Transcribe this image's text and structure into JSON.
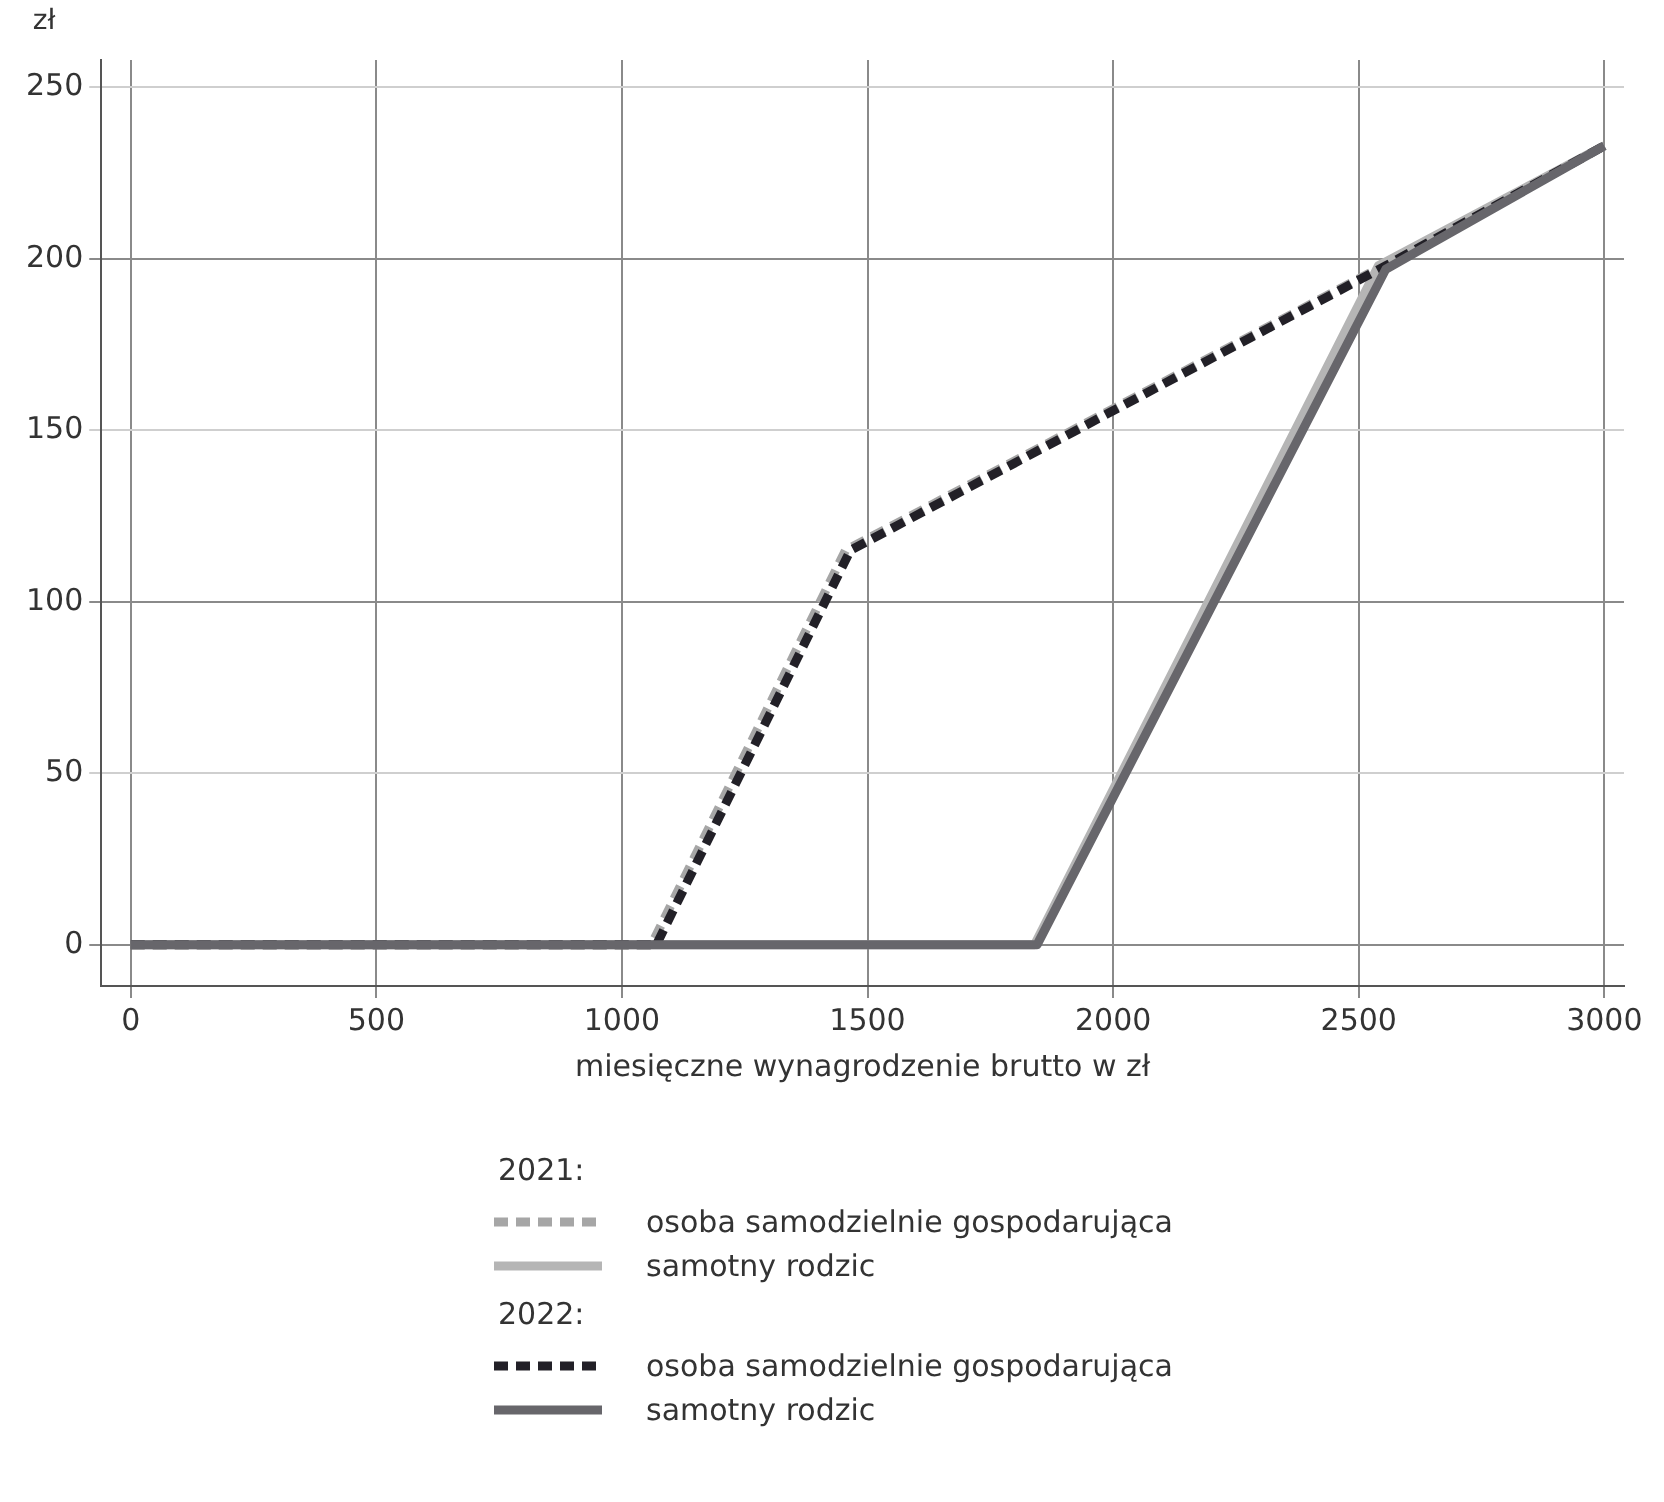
{
  "chart_data": {
    "type": "line",
    "ylabel": "zł",
    "xlabel": "miesięczne wynagrodzenie brutto w zł",
    "xlim": [
      -60,
      3040
    ],
    "xticks": [
      0,
      500,
      1000,
      1500,
      2000,
      2500,
      3000
    ],
    "ylim": [
      -12,
      258
    ],
    "yticks": [
      0,
      50,
      100,
      150,
      200,
      250
    ],
    "grid": true,
    "legend": "bottom",
    "marker": "none",
    "annotations": [
      "2021:",
      "2022:"
    ],
    "series": [
      {
        "name": "osoba samodzielnie gospodarująca",
        "color": "#a6a6a6",
        "line_style": "dashed",
        "x": [
          0,
          1060,
          1455,
          2550,
          3000
        ],
        "values": [
          0,
          0,
          115,
          198,
          233
        ]
      },
      {
        "name": "samotny rodzic",
        "color": "#b5b5b5",
        "line_style": "solid",
        "x": [
          0,
          1840,
          2540,
          3000
        ],
        "values": [
          0,
          0,
          198,
          233
        ]
      },
      {
        "name": "osoba samodzielnie gospodarująca",
        "color": "#222027",
        "line_style": "dashed",
        "x": [
          0,
          1070,
          1465,
          2555,
          3000
        ],
        "values": [
          0,
          0,
          115,
          198,
          233
        ]
      },
      {
        "name": "samotny rodzic",
        "color": "#67666b",
        "line_style": "solid",
        "x": [
          0,
          1845,
          2555,
          3000
        ],
        "values": [
          0,
          0,
          197,
          233
        ]
      }
    ]
  }
}
